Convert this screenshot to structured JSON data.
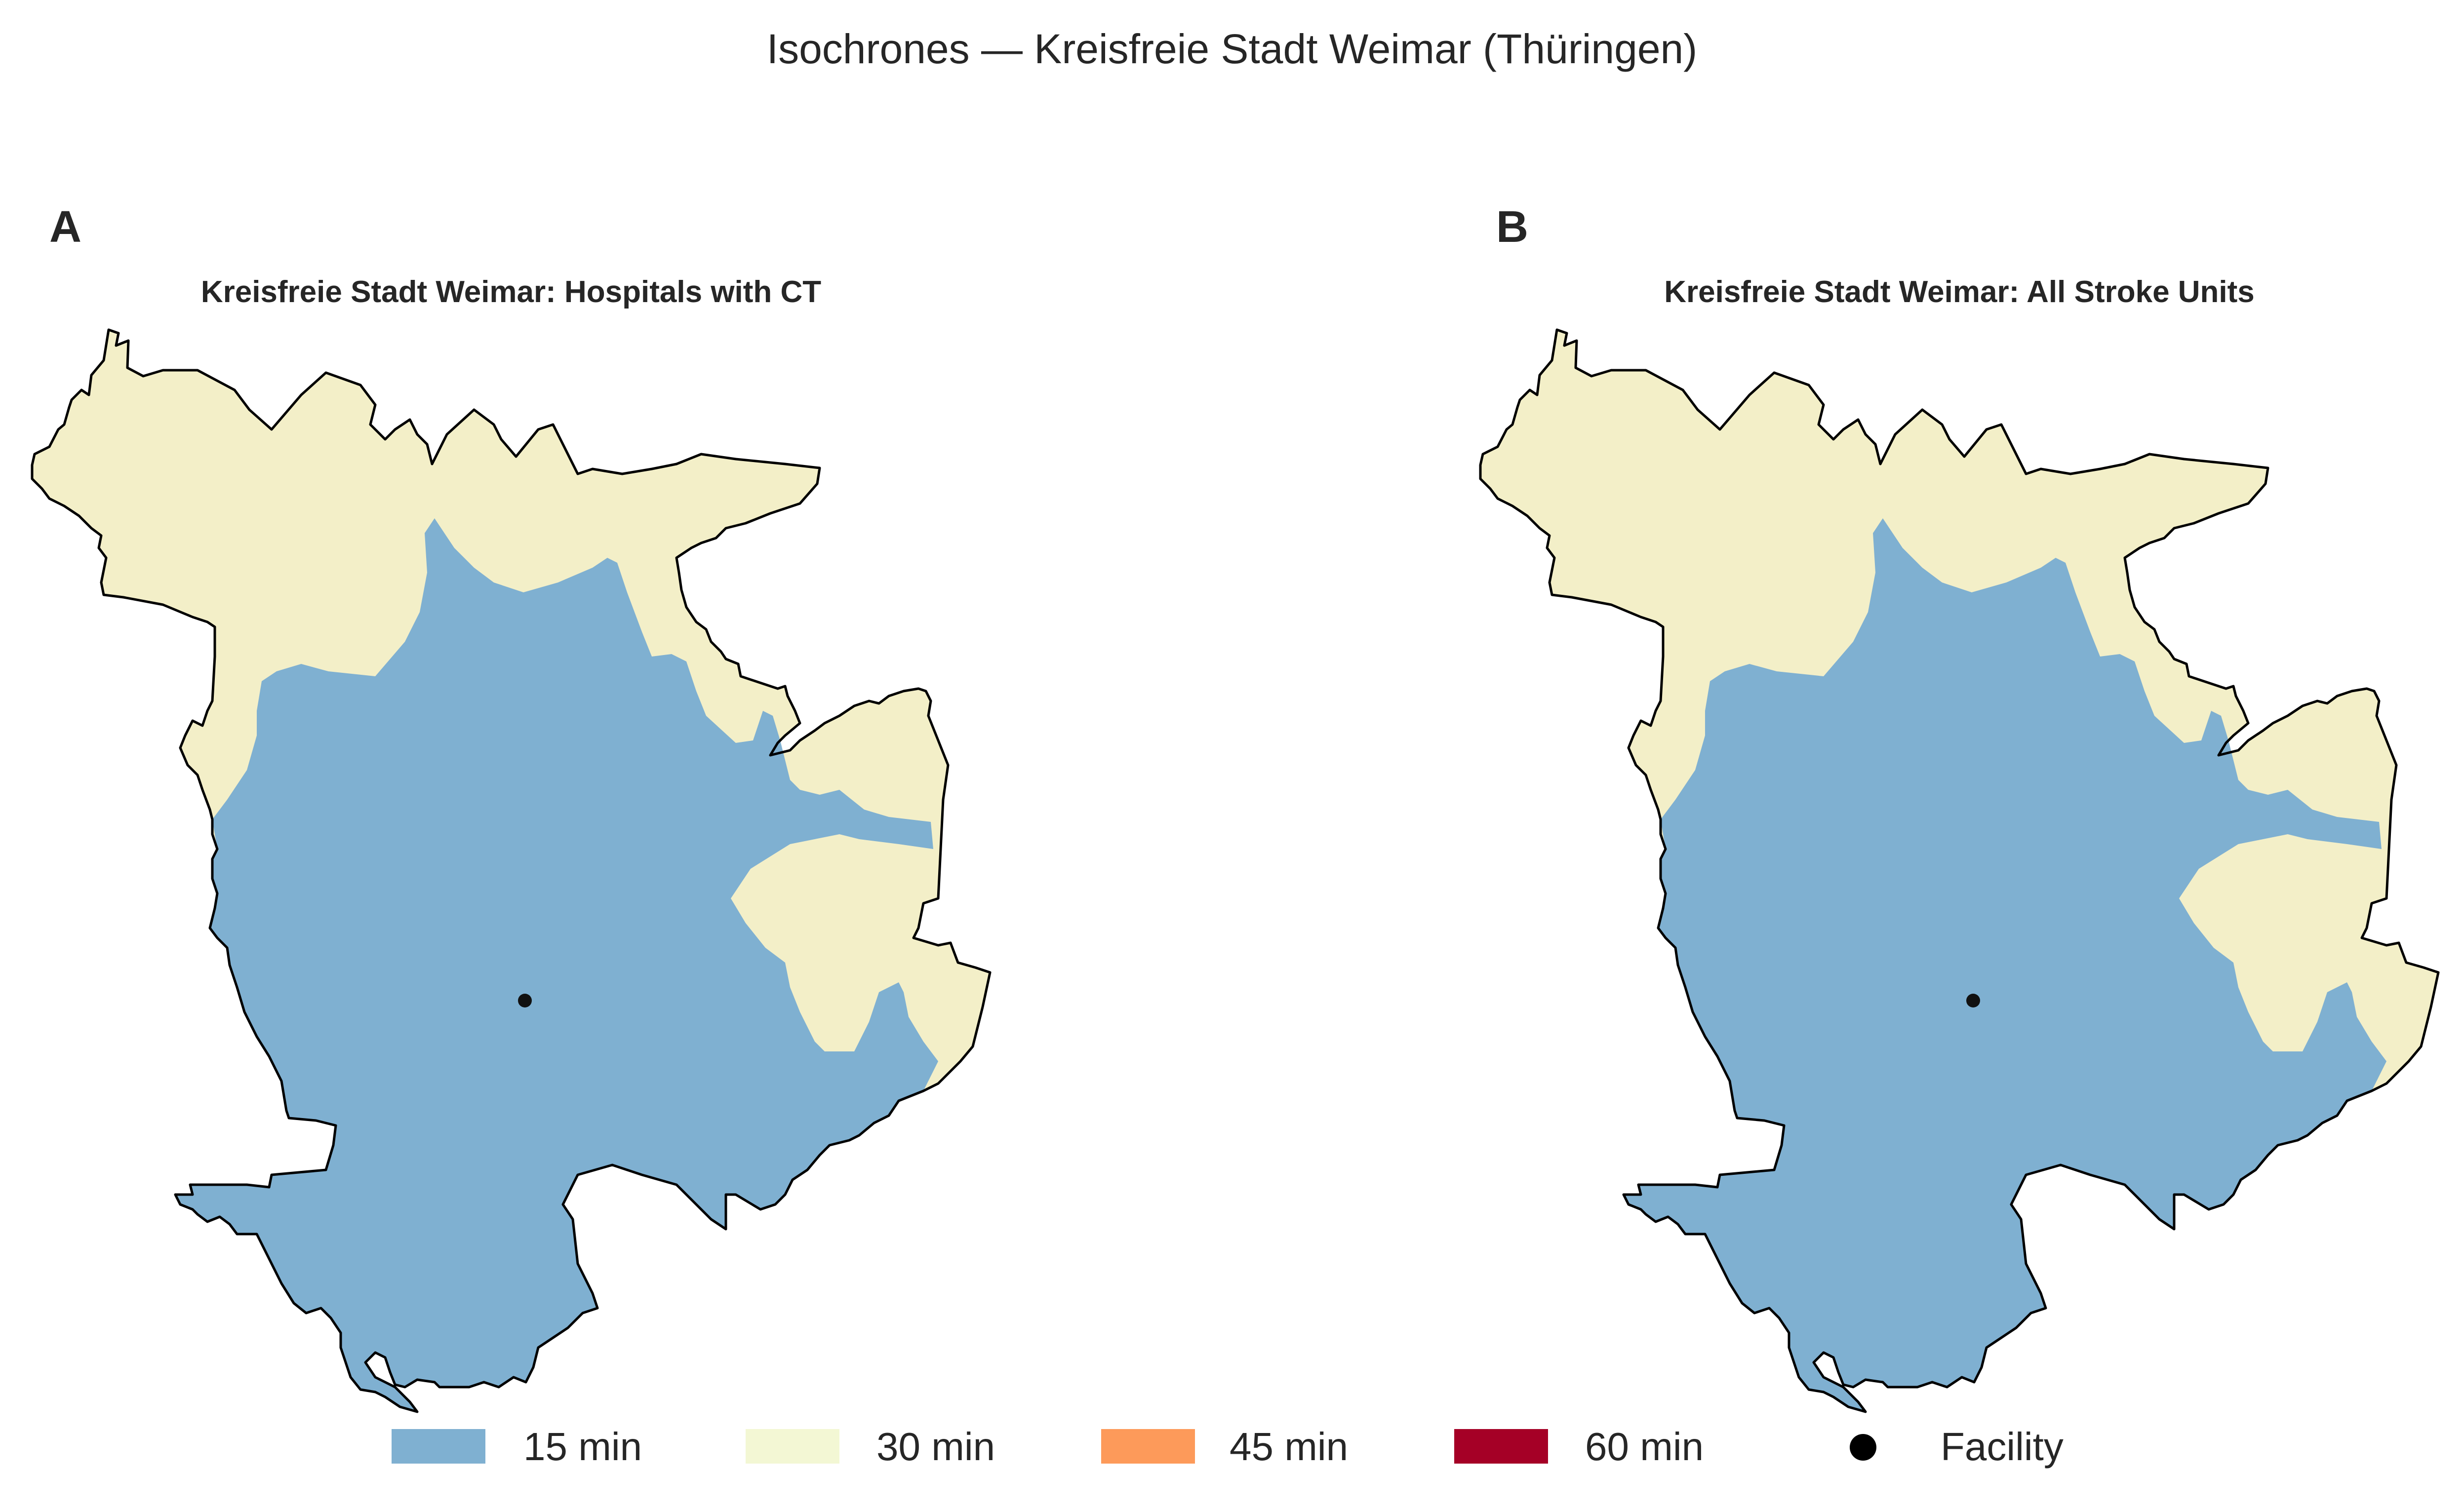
{
  "figure": {
    "title": "Isochrones — Kreisfreie Stadt Weimar (Thüringen)"
  },
  "panels": [
    {
      "label": "A",
      "title": "Kreisfreie Stadt Weimar: Hospitals with CT"
    },
    {
      "label": "B",
      "title": "Kreisfreie Stadt Weimar: All Stroke Units"
    }
  ],
  "legend": {
    "items": [
      {
        "label": "15 min",
        "color": "#7fb0d1"
      },
      {
        "label": "30 min",
        "color": "#f3efc8"
      },
      {
        "label": "45 min",
        "color": "#fd9a5a"
      },
      {
        "label": "60 min",
        "color": "#a50026"
      },
      {
        "label": "Facility",
        "color": "#000000",
        "marker": "dot"
      }
    ]
  },
  "colors": {
    "zone_15": "#7fb0d1",
    "zone_30": "#f3efc8",
    "boundary": "#000000",
    "facility": "#111111"
  }
}
